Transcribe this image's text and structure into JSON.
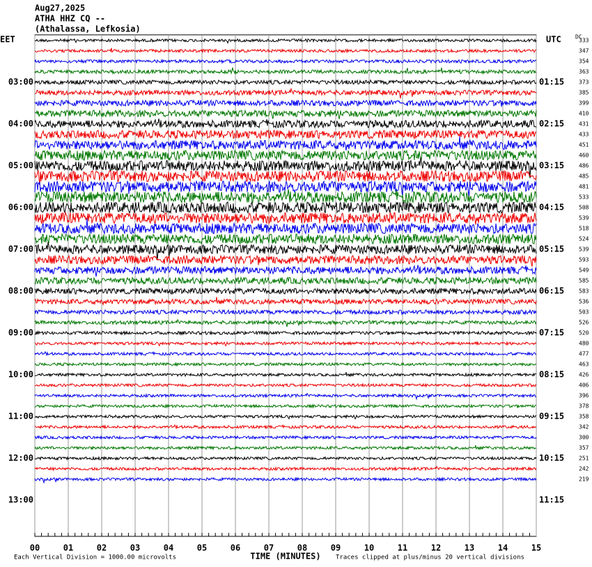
{
  "header": {
    "lines": [
      "Aug27,2025",
      "ATHA HHZ CQ --",
      "(Athalassa, Lefkosia)"
    ]
  },
  "left_zone": "EET",
  "right_zone": "UTC",
  "dc_heading": "DC",
  "left_times": [
    "03:00",
    "04:00",
    "05:00",
    "06:00",
    "07:00",
    "08:00",
    "09:00",
    "10:00",
    "11:00",
    "12:00",
    "13:00"
  ],
  "right_times": [
    "01:15",
    "02:15",
    "03:15",
    "04:15",
    "05:15",
    "06:15",
    "07:15",
    "08:15",
    "09:15",
    "10:15",
    "11:15"
  ],
  "dc_values": [
    "333",
    "347",
    "354",
    "363",
    "373",
    "385",
    "399",
    "410",
    "431",
    "433",
    "451",
    "460",
    "486",
    "485",
    "481",
    "533",
    "508",
    "539",
    "518",
    "524",
    "539",
    "593",
    "549",
    "585",
    "583",
    "536",
    "503",
    "526",
    "520",
    "480",
    "477",
    "463",
    "426",
    "406",
    "396",
    "378",
    "358",
    "342",
    "300",
    "357",
    "251",
    "242",
    "219"
  ],
  "x_axis": {
    "ticks": [
      "00",
      "01",
      "02",
      "03",
      "04",
      "05",
      "06",
      "07",
      "08",
      "09",
      "10",
      "11",
      "12",
      "13",
      "14",
      "15"
    ],
    "title": "TIME (MINUTES)"
  },
  "footer": {
    "scale": "Each Vertical Division = 1000.00 microvolts",
    "clip": "Traces clipped at plus/minus 20 vertical divisions"
  }
}
